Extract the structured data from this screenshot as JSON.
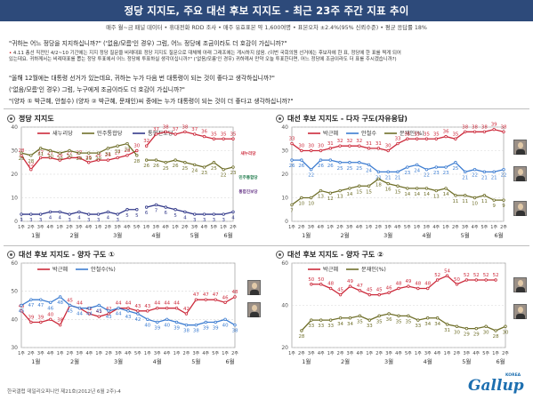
{
  "header": {
    "title": "정당 지지도, 주요 대선 후보 지지도 - 최근 23주 주간 지표 추이",
    "subtitle": "매주 월~금 패널 데이터 • 휴대전화 RDD 조사 • 매주 유효표본 약 1,600여명 • 표본오차 ±2.4%(95% 신뢰수준) • 평균 응답률 18%"
  },
  "questions": {
    "party": "\"귀하는 어느 정당을 지지하십니까?\" ('없음/모름'인 경우) 그럼, 어느 정당에 조금이라도 더 호감이 가십니까?\"",
    "note_bullet": "•",
    "note_line1": "4.11 총선 직전인 4/2~10 기간에는 지지 정당 질문을 비례대표 정당 지지도 질문으로 대체해 아래 그래프에는 게시하지 않음. (이번 국회의원 선거에는 후보자에 한 표, 정당에 한 표를 찍게 되어",
    "note_line2": "있는데요. 귀하께서는 비례대표를 뽑는 정당 투표에서 어느 정당에 투표하실 생각이십니까?\" ('없음/모름'인 경우) 귀하께서 만약 오늘 투표한다면, 어느 정당에 조금이라도 더 표를 주시겠습니까?)",
    "candidate1": "\"올해 12월에는 대통령 선거가 있는데요, 귀하는 누가 다음 번 대통령이 되는 것이 좋다고 생각하십니까?\"",
    "candidate2": "('없음/모름'인 경우) 그럼, 누구에게 조금이라도 더 호감이 가십니까?\"",
    "candidate3": "\"(양자 ① 박근혜, 안철수) (양자 ② 박근혜, 문재인)씨 중에는 누가 대통령이 되는 것이 더 좋다고 생각하십니까?\""
  },
  "footer": {
    "source": "한국갤럽 데일리오피니언 제21호(2012년 6월 2주)-4",
    "logo": "Gallup",
    "logo_sub": "KOREA"
  },
  "colors": {
    "red": "#cc2a3b",
    "blue": "#3d7dd1",
    "olive": "#6f6f2a",
    "navy": "#333a8a",
    "grid": "#d6d6d6",
    "header_bg": "#2d4a7a"
  },
  "chart_data": [
    {
      "type": "line",
      "title": "정당 지지도",
      "ylim": [
        0,
        40
      ],
      "yticks": [
        0,
        10,
        20,
        30,
        40
      ],
      "months": [
        "1월",
        "2월",
        "3월",
        "4월",
        "5월",
        "6월"
      ],
      "x_labels": [
        "1주",
        "2주",
        "3주",
        "4주",
        "1주",
        "2주",
        "3주",
        "4주",
        "1주",
        "2주",
        "3주",
        "4주",
        "5주",
        "1주",
        "3주",
        "4주",
        "1주",
        "2주",
        "3주",
        "4주",
        "5주",
        "1주",
        "2주"
      ],
      "show_labels": true,
      "gap_after_index": 12,
      "legend_placement": "top",
      "series": [
        {
          "name": "새누리당",
          "color": "#cc2a3b",
          "values": [
            28,
            22,
            27,
            27,
            26,
            27,
            27,
            25,
            26,
            26,
            27,
            28,
            30,
            32,
            37,
            38,
            37,
            38,
            37,
            36,
            35,
            35,
            35
          ]
        },
        {
          "name": "민주통합당",
          "color": "#6f6f2a",
          "values": [
            29,
            28,
            31,
            30,
            29,
            30,
            29,
            29,
            29,
            31,
            32,
            33,
            28,
            26,
            26,
            25,
            26,
            25,
            24,
            23,
            25,
            22,
            23
          ]
        },
        {
          "name": "통합진보당",
          "color": "#333a8a",
          "values": [
            3,
            3,
            3,
            4,
            4,
            3,
            4,
            3,
            3,
            4,
            3,
            5,
            5,
            6,
            7,
            6,
            5,
            4,
            3,
            3,
            3,
            3,
            4
          ]
        }
      ],
      "annotations": [
        {
          "text": "새누리당",
          "color": "#cc2a3b"
        },
        {
          "text": "민주통합당",
          "color": "#1d7a4a"
        },
        {
          "text": "통합진보당",
          "color": "#6a3a8a"
        }
      ]
    },
    {
      "type": "line",
      "title": "대선 후보 지지도 - 다자 구도(자유응답)",
      "ylim": [
        0,
        40
      ],
      "yticks": [
        0,
        10,
        20,
        30,
        40
      ],
      "months": [
        "1월",
        "2월",
        "3월",
        "4월",
        "5월",
        "6월"
      ],
      "x_labels": [
        "1주",
        "2주",
        "3주",
        "4주",
        "1주",
        "2주",
        "3주",
        "4주",
        "1주",
        "2주",
        "3주",
        "4주",
        "5주",
        "1주",
        "3주",
        "4주",
        "1주",
        "2주",
        "3주",
        "4주",
        "5주",
        "1주",
        "2주"
      ],
      "show_labels": true,
      "gap_after_index": null,
      "legend_placement": "top",
      "series": [
        {
          "name": "박근혜",
          "color": "#cc2a3b",
          "values": [
            33,
            30,
            30,
            30,
            31,
            32,
            32,
            32,
            31,
            31,
            30,
            33,
            35,
            35,
            35,
            35,
            36,
            35,
            38,
            38,
            38,
            39,
            38
          ]
        },
        {
          "name": "안철수",
          "color": "#3d7dd1",
          "values": [
            26,
            26,
            22,
            26,
            26,
            25,
            25,
            25,
            24,
            21,
            21,
            21,
            23,
            24,
            22,
            23,
            23,
            25,
            21,
            22,
            21,
            21,
            22
          ]
        },
        {
          "name": "문재인(%)",
          "color": "#6f6f2a",
          "values": [
            7,
            10,
            10,
            13,
            12,
            13,
            14,
            15,
            15,
            18,
            16,
            15,
            14,
            14,
            14,
            13,
            14,
            11,
            11,
            10,
            11,
            9,
            9
          ]
        }
      ]
    },
    {
      "type": "line",
      "title": "대선 후보 지지도 - 양자 구도 ①",
      "ylim": [
        30,
        60
      ],
      "yticks": [
        30,
        40,
        50,
        60
      ],
      "months": [
        "1월",
        "2월",
        "3월",
        "4월",
        "5월",
        "6월"
      ],
      "x_labels": [
        "1주",
        "2주",
        "3주",
        "4주",
        "1주",
        "2주",
        "3주",
        "4주",
        "1주",
        "2주",
        "3주",
        "4주",
        "5주",
        "1주",
        "3주",
        "4주",
        "1주",
        "2주",
        "3주",
        "4주",
        "5주",
        "1주",
        "2주"
      ],
      "show_labels": false,
      "gap_after_index": null,
      "legend_placement": "top",
      "series": [
        {
          "name": "박근혜",
          "color": "#cc2a3b",
          "values": [
            43,
            39,
            39,
            40,
            38,
            45,
            44,
            42,
            41,
            42,
            44,
            44,
            43,
            43,
            44,
            44,
            44,
            42,
            47,
            47,
            47,
            46,
            48
          ]
        },
        {
          "name": "안철수(%)",
          "color": "#3d7dd1",
          "values": [
            45,
            47,
            47,
            46,
            48,
            45,
            44,
            44,
            45,
            43,
            44,
            43,
            42,
            40,
            39,
            40,
            39,
            38,
            38,
            39,
            39,
            40,
            38
          ]
        }
      ]
    },
    {
      "type": "line",
      "title": "대선 후보 지지도 - 양자 구도 ②",
      "ylim": [
        20,
        60
      ],
      "yticks": [
        20,
        40,
        60
      ],
      "months": [
        "1월",
        "2월",
        "3월",
        "4월",
        "5월",
        "6월"
      ],
      "x_labels": [
        "1주",
        "2주",
        "3주",
        "4주",
        "1주",
        "2주",
        "3주",
        "4주",
        "1주",
        "2주",
        "3주",
        "4주",
        "5주",
        "1주",
        "3주",
        "4주",
        "1주",
        "2주",
        "3주",
        "4주",
        "5주",
        "1주",
        "2주"
      ],
      "show_labels": false,
      "gap_after_index": null,
      "legend_placement": "top",
      "series": [
        {
          "name": "박근혜",
          "color": "#cc2a3b",
          "values": [
            null,
            null,
            50,
            50,
            48,
            45,
            49,
            47,
            45,
            45,
            46,
            48,
            49,
            48,
            48,
            52,
            54,
            50,
            52,
            52,
            52,
            52,
            null
          ]
        },
        {
          "name": "문재인(%)",
          "color": "#6f6f2a",
          "values": [
            null,
            28,
            33,
            33,
            33,
            34,
            34,
            35,
            33,
            35,
            36,
            35,
            35,
            33,
            34,
            34,
            31,
            30,
            29,
            29,
            30,
            28,
            30
          ]
        }
      ]
    }
  ]
}
